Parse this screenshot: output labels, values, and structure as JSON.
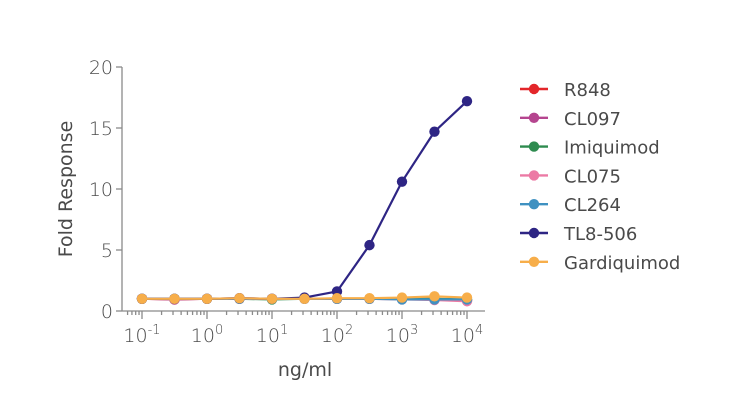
{
  "chart_data": {
    "type": "line",
    "title": "",
    "xlabel": "ng/ml",
    "ylabel": "Fold Response",
    "xscale": "log",
    "xlim": [
      0.1,
      10000
    ],
    "ylim": [
      0,
      20
    ],
    "yticks": [
      0,
      5,
      10,
      15,
      20
    ],
    "xtick_labels": [
      {
        "base": "10",
        "exp": "-1"
      },
      {
        "base": "10",
        "exp": "0"
      },
      {
        "base": "10",
        "exp": "1"
      },
      {
        "base": "10",
        "exp": "2"
      },
      {
        "base": "10",
        "exp": "3"
      },
      {
        "base": "10",
        "exp": "4"
      }
    ],
    "grid": false,
    "legend_position": "right",
    "x": [
      0.1,
      0.316,
      1,
      3.16,
      10,
      31.6,
      100,
      316,
      1000,
      3160,
      10000
    ],
    "series": [
      {
        "name": "R848",
        "color": "#e3262a",
        "values": [
          1.0,
          0.95,
          1.0,
          1.0,
          1.0,
          1.0,
          1.0,
          1.0,
          1.0,
          1.0,
          0.9
        ]
      },
      {
        "name": "CL097",
        "color": "#b5458f",
        "values": [
          1.0,
          0.95,
          1.0,
          1.05,
          1.0,
          1.0,
          1.0,
          1.0,
          1.0,
          0.95,
          0.85
        ]
      },
      {
        "name": "Imiquimod",
        "color": "#2e8b4f",
        "values": [
          1.0,
          1.0,
          1.0,
          1.0,
          0.95,
          1.0,
          1.0,
          1.0,
          1.0,
          1.0,
          0.95
        ]
      },
      {
        "name": "CL075",
        "color": "#ec7aa5",
        "values": [
          1.0,
          1.0,
          1.0,
          1.0,
          1.0,
          1.0,
          1.0,
          1.0,
          0.95,
          0.9,
          0.8
        ]
      },
      {
        "name": "CL264",
        "color": "#3f91c1",
        "values": [
          1.0,
          1.0,
          1.0,
          1.0,
          1.0,
          1.0,
          1.0,
          1.0,
          0.95,
          0.95,
          0.95
        ]
      },
      {
        "name": "TL8-506",
        "color": "#2e2584",
        "values": [
          1.0,
          1.0,
          1.0,
          1.05,
          1.0,
          1.1,
          1.6,
          5.4,
          10.6,
          14.7,
          17.2
        ]
      },
      {
        "name": "Gardiquimod",
        "color": "#f7ae4a",
        "values": [
          1.0,
          1.0,
          1.0,
          1.05,
          1.0,
          1.0,
          1.05,
          1.05,
          1.1,
          1.2,
          1.1
        ]
      }
    ]
  }
}
